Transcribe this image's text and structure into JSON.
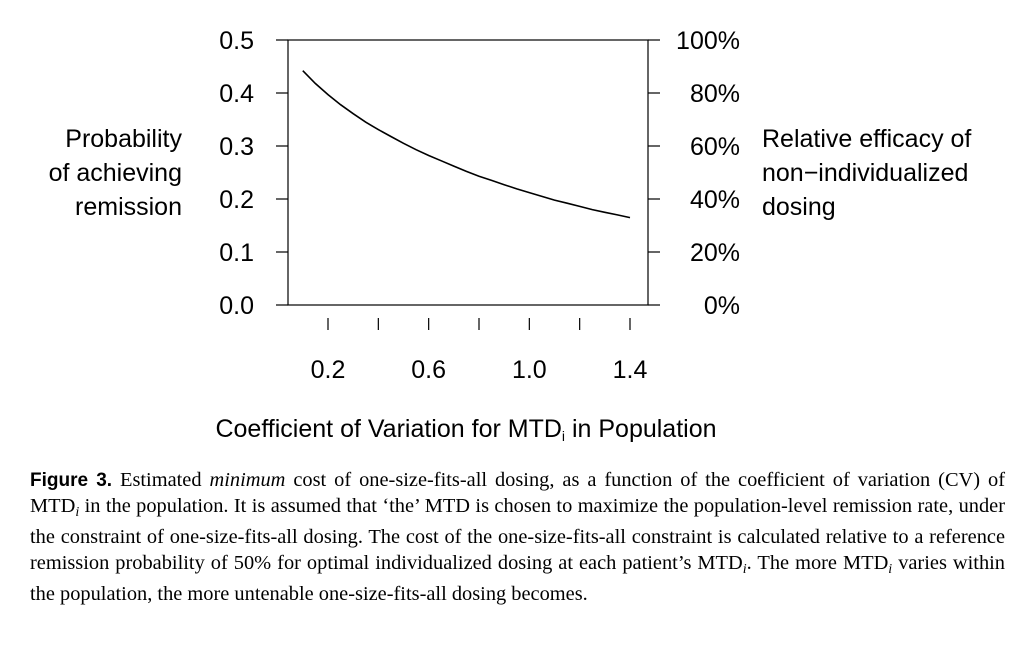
{
  "chart_data": {
    "type": "line",
    "title": "",
    "xlabel_main": "Coefficient of Variation for MTD",
    "xlabel_sub": "i",
    "xlabel_tail": " in Population",
    "ylabel_left": [
      "Probability",
      "of achieving",
      "remission"
    ],
    "ylabel_right": [
      "Relative efficacy of",
      "non−individualized",
      "dosing"
    ],
    "xlim": [
      0.1,
      1.4
    ],
    "ylim": [
      0,
      0.5
    ],
    "x_ticks": [
      0.2,
      0.6,
      1.0,
      1.4
    ],
    "x_tick_labels": [
      "0.2",
      "0.6",
      "1.0",
      "1.4"
    ],
    "y_ticks": [
      0,
      0.1,
      0.2,
      0.3,
      0.4,
      0.5
    ],
    "y_tick_labels": [
      "0.0",
      "0.1",
      "0.2",
      "0.3",
      "0.4",
      "0.5"
    ],
    "y2_tick_labels": [
      "0%",
      "20%",
      "40%",
      "60%",
      "80%",
      "100%"
    ],
    "grid": false,
    "series": [
      {
        "x": [
          0.1,
          0.15,
          0.2,
          0.25,
          0.3,
          0.35,
          0.4,
          0.45,
          0.5,
          0.55,
          0.6,
          0.65,
          0.7,
          0.75,
          0.8,
          0.85,
          0.9,
          0.95,
          1.0,
          1.05,
          1.1,
          1.15,
          1.2,
          1.25,
          1.3,
          1.35,
          1.4
        ],
        "y": [
          0.442,
          0.418,
          0.397,
          0.378,
          0.361,
          0.345,
          0.331,
          0.318,
          0.305,
          0.293,
          0.282,
          0.272,
          0.262,
          0.252,
          0.243,
          0.235,
          0.227,
          0.219,
          0.212,
          0.205,
          0.198,
          0.192,
          0.186,
          0.18,
          0.175,
          0.17,
          0.165
        ],
        "color": "#000000"
      }
    ]
  },
  "caption": {
    "label": "Figure 3.",
    "t1": " Estimated ",
    "t1_em": "minimum",
    "t2": " cost of one-size-fits-all dosing, as a function of the coefficient of variation (CV) of MTD",
    "sub_i": "i",
    "t3": " in the population. It is assumed that ‘the’ MTD is chosen to maximize the population-level remission rate, under the constraint of one-size-fits-all dosing. The cost of the one-size-fits-all constraint is calculated relative to a reference remission probability of 50% for optimal individualized dosing at each patient’s MTD",
    "t4": ". The more MTD",
    "t5": " varies within the population, the more untenable one-size-fits-all dosing becomes."
  }
}
